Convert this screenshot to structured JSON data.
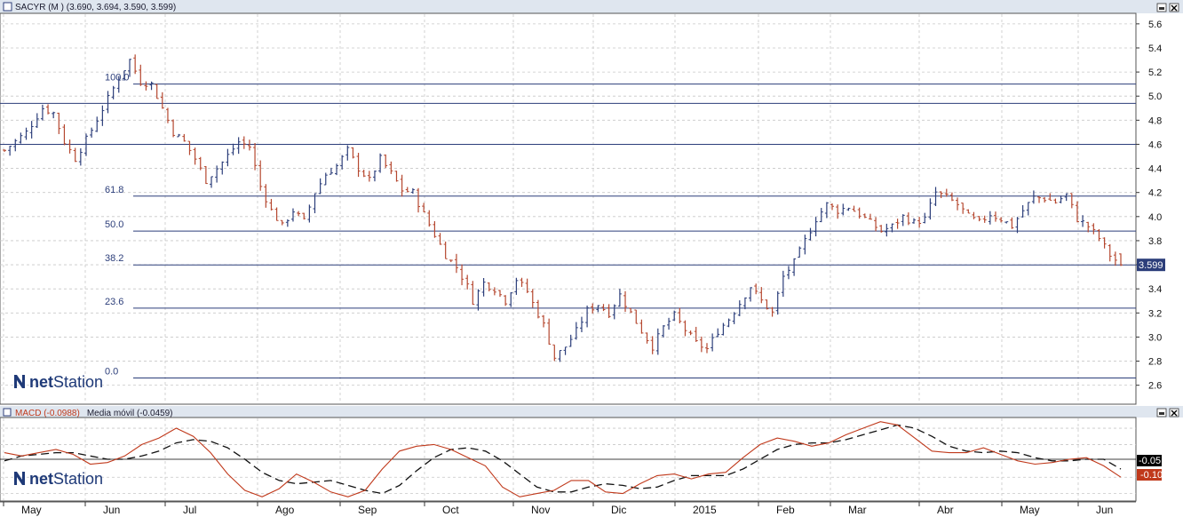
{
  "colors": {
    "background": "#ffffff",
    "title_bar": "#dfe6ef",
    "grid": "#c8c8c8",
    "fib_line": "#2c3e7a",
    "bar_up": "#2c3e7a",
    "bar_down": "#b5472f",
    "macd_line": "#c0391b",
    "signal_line": "#111111",
    "last_price_bg": "#2c3e7a",
    "logo": "#1f3a78"
  },
  "icons": [
    "window-restore-icon",
    "window-close-icon"
  ],
  "price_panel": {
    "title": "SACYR (M ) (3.690, 3.694, 3.590, 3.599)",
    "last_price_label": "3.599",
    "logo_net": "net",
    "logo_station": "Station"
  },
  "macd_panel": {
    "title_macd": "MACD (-0.0988)",
    "title_signal": "Media móvil (-0.0459)",
    "macd_value_label": "-0.10",
    "signal_value_label": "-0.05",
    "logo_net": "net",
    "logo_station": "Station"
  },
  "chart_data": [
    {
      "type": "bar",
      "title": "SACYR (M ) (3.690, 3.694, 3.590, 3.599)",
      "subtype": "OHLC",
      "y_ticks": [
        "2.6",
        "2.8",
        "3.0",
        "3.2",
        "3.4",
        "3.6",
        "3.8",
        "4.0",
        "4.2",
        "4.4",
        "4.6",
        "4.8",
        "5.0",
        "5.2",
        "5.4",
        "5.6"
      ],
      "ylim": [
        2.45,
        5.68
      ],
      "months": [
        "May",
        "Jun",
        "Jul",
        "Ago",
        "Sep",
        "Oct",
        "Nov",
        "Dic",
        "2015",
        "Feb",
        "Mar",
        "Abr",
        "May",
        "Jun"
      ],
      "price_path": [
        [
          0,
          4.55
        ],
        [
          4,
          4.7
        ],
        [
          7,
          4.9
        ],
        [
          9,
          4.86
        ],
        [
          11,
          4.62
        ],
        [
          13,
          4.48
        ],
        [
          16,
          4.72
        ],
        [
          19,
          4.98
        ],
        [
          21,
          5.15
        ],
        [
          23,
          5.3
        ],
        [
          25,
          5.12
        ],
        [
          27,
          5.1
        ],
        [
          29,
          4.9
        ],
        [
          31,
          4.7
        ],
        [
          33,
          4.62
        ],
        [
          35,
          4.48
        ],
        [
          37,
          4.3
        ],
        [
          40,
          4.45
        ],
        [
          43,
          4.62
        ],
        [
          45,
          4.58
        ],
        [
          47,
          4.25
        ],
        [
          49,
          4.05
        ],
        [
          51,
          3.92
        ],
        [
          53,
          4.05
        ],
        [
          55,
          3.96
        ],
        [
          57,
          4.2
        ],
        [
          59,
          4.35
        ],
        [
          61,
          4.42
        ],
        [
          63,
          4.55
        ],
        [
          65,
          4.4
        ],
        [
          67,
          4.3
        ],
        [
          69,
          4.48
        ],
        [
          71,
          4.36
        ],
        [
          73,
          4.22
        ],
        [
          75,
          4.2
        ],
        [
          77,
          4.02
        ],
        [
          79,
          3.85
        ],
        [
          81,
          3.68
        ],
        [
          83,
          3.58
        ],
        [
          85,
          3.42
        ],
        [
          86,
          3.3
        ],
        [
          88,
          3.45
        ],
        [
          90,
          3.4
        ],
        [
          92,
          3.3
        ],
        [
          94,
          3.48
        ],
        [
          96,
          3.38
        ],
        [
          97,
          3.28
        ],
        [
          99,
          3.1
        ],
        [
          101,
          2.83
        ],
        [
          103,
          2.92
        ],
        [
          105,
          3.05
        ],
        [
          107,
          3.22
        ],
        [
          109,
          3.27
        ],
        [
          111,
          3.2
        ],
        [
          113,
          3.35
        ],
        [
          115,
          3.2
        ],
        [
          117,
          3.05
        ],
        [
          119,
          2.92
        ],
        [
          121,
          3.08
        ],
        [
          123,
          3.18
        ],
        [
          125,
          3.06
        ],
        [
          127,
          2.95
        ],
        [
          129,
          2.9
        ],
        [
          131,
          3.05
        ],
        [
          133,
          3.15
        ],
        [
          135,
          3.28
        ],
        [
          137,
          3.42
        ],
        [
          139,
          3.3
        ],
        [
          141,
          3.2
        ],
        [
          143,
          3.5
        ],
        [
          145,
          3.62
        ],
        [
          147,
          3.8
        ],
        [
          149,
          3.98
        ],
        [
          151,
          4.1
        ],
        [
          153,
          4.05
        ],
        [
          155,
          4.08
        ],
        [
          157,
          4.02
        ],
        [
          159,
          3.95
        ],
        [
          161,
          3.88
        ],
        [
          163,
          3.92
        ],
        [
          165,
          4.0
        ],
        [
          167,
          3.95
        ],
        [
          169,
          3.98
        ],
        [
          171,
          4.2
        ],
        [
          173,
          4.16
        ],
        [
          175,
          4.1
        ],
        [
          177,
          4.0
        ],
        [
          179,
          3.95
        ],
        [
          181,
          4.02
        ],
        [
          183,
          3.98
        ],
        [
          185,
          3.92
        ],
        [
          187,
          4.05
        ],
        [
          189,
          4.16
        ],
        [
          191,
          4.15
        ],
        [
          193,
          4.12
        ],
        [
          195,
          4.18
        ],
        [
          197,
          3.98
        ],
        [
          199,
          3.92
        ],
        [
          201,
          3.82
        ],
        [
          203,
          3.68
        ],
        [
          205,
          3.599
        ]
      ],
      "bar_count": 206,
      "last_bar": {
        "open": 3.69,
        "high": 3.694,
        "low": 3.59,
        "close": 3.599
      },
      "fibonacci_levels": [
        {
          "label": "100.0",
          "value": 5.1
        },
        {
          "label": "61.8",
          "value": 4.17
        },
        {
          "label": "50.0",
          "value": 3.88
        },
        {
          "label": "38.2",
          "value": 3.599
        },
        {
          "label": "23.6",
          "value": 3.24
        },
        {
          "label": "0.0",
          "value": 2.66
        }
      ],
      "horizontal_lines": [
        4.94,
        4.6
      ],
      "grid": true
    },
    {
      "type": "line",
      "title": "MACD (-0.0988) Media móvil (-0.0459)",
      "ylim": [
        -0.24,
        0.26
      ],
      "zero_line": true,
      "series": [
        {
          "name": "MACD (-0.0988)",
          "values": [
            0.05,
            0.03,
            0.05,
            0.07,
            0.04,
            -0.02,
            -0.01,
            0.03,
            0.1,
            0.14,
            0.2,
            0.15,
            0.05,
            -0.08,
            -0.18,
            -0.22,
            -0.17,
            -0.08,
            -0.13,
            -0.19,
            -0.22,
            -0.18,
            -0.05,
            0.06,
            0.09,
            0.1,
            0.07,
            0.02,
            -0.03,
            -0.16,
            -0.22,
            -0.2,
            -0.18,
            -0.12,
            -0.12,
            -0.19,
            -0.2,
            -0.14,
            -0.09,
            -0.08,
            -0.11,
            -0.08,
            -0.07,
            0.02,
            0.1,
            0.14,
            0.12,
            0.09,
            0.11,
            0.16,
            0.2,
            0.24,
            0.22,
            0.14,
            0.06,
            0.05,
            0.05,
            0.08,
            0.04,
            0.0,
            -0.02,
            -0.01,
            0.01,
            0.02,
            -0.03,
            -0.1
          ]
        },
        {
          "name": "Media móvil (-0.0459)",
          "values": [
            0.0,
            0.03,
            0.04,
            0.05,
            0.05,
            0.03,
            0.01,
            0.01,
            0.03,
            0.06,
            0.11,
            0.13,
            0.12,
            0.08,
            0.01,
            -0.07,
            -0.12,
            -0.14,
            -0.13,
            -0.12,
            -0.15,
            -0.18,
            -0.2,
            -0.15,
            -0.06,
            0.02,
            0.07,
            0.08,
            0.06,
            0.0,
            -0.08,
            -0.16,
            -0.19,
            -0.19,
            -0.16,
            -0.14,
            -0.15,
            -0.17,
            -0.16,
            -0.12,
            -0.09,
            -0.09,
            -0.09,
            -0.05,
            0.01,
            0.07,
            0.1,
            0.11,
            0.11,
            0.13,
            0.16,
            0.19,
            0.22,
            0.2,
            0.15,
            0.09,
            0.06,
            0.05,
            0.06,
            0.05,
            0.02,
            0.0,
            0.0,
            0.01,
            0.01,
            -0.05
          ]
        }
      ],
      "value_labels": [
        "-0.05",
        "-0.10"
      ],
      "grid": true
    }
  ]
}
